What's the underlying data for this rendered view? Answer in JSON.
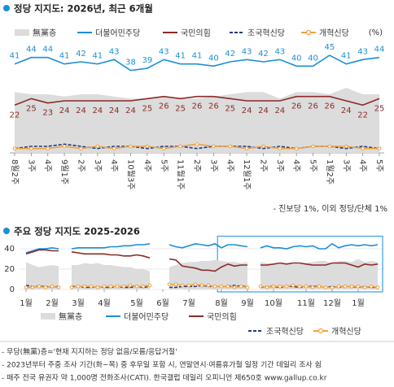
{
  "chart_data": [
    {
      "type": "line",
      "title": "정당 지지도: 2026년, 최근 6개월",
      "unit": "(%)",
      "note": "- 진보당 1%, 이외 정당/단체 1%",
      "categories": [
        "8월2주",
        "3주",
        "4주",
        "9월1주",
        "2주",
        "3주",
        "4주",
        "10월3주",
        "4주",
        "5주",
        "11월1주",
        "2주",
        "3주",
        "4주",
        "12월1주",
        "2주",
        "3주",
        "4주",
        "5주",
        "1월2주",
        "3주",
        "4주",
        "5주"
      ],
      "ylim": [
        0,
        48
      ],
      "series": [
        {
          "name": "無黨층",
          "color": "#dcdcdc",
          "style": "area",
          "values": [
            28,
            27,
            27,
            26,
            27,
            27,
            26,
            25,
            25,
            26,
            25,
            25,
            26,
            27,
            28,
            28,
            25,
            28,
            28,
            27,
            30,
            27,
            27
          ]
        },
        {
          "name": "더불어민주당",
          "color": "#1a8fd8",
          "style": "solid",
          "labels": "above",
          "values": [
            41,
            44,
            44,
            41,
            42,
            41,
            43,
            38,
            39,
            43,
            41,
            41,
            40,
            42,
            43,
            42,
            43,
            40,
            40,
            45,
            41,
            43,
            44
          ]
        },
        {
          "name": "국민의힘",
          "color": "#8b2a2a",
          "style": "solid",
          "labels": "below",
          "values": [
            22,
            25,
            23,
            24,
            24,
            24,
            24,
            24,
            25,
            26,
            25,
            26,
            26,
            25,
            24,
            24,
            24,
            26,
            26,
            26,
            24,
            22,
            25
          ]
        },
        {
          "name": "조국혁신당",
          "color": "#1f3a7a",
          "style": "dashed",
          "values": [
            2,
            3,
            3,
            4,
            3,
            2,
            3,
            3,
            2,
            3,
            3,
            2,
            3,
            3,
            3,
            2,
            3,
            2,
            3,
            3,
            2,
            3,
            2
          ]
        },
        {
          "name": "개혁신당",
          "color": "#f0a040",
          "style": "solid",
          "marker": true,
          "values": [
            2,
            2,
            2,
            3,
            2,
            3,
            2,
            3,
            3,
            2,
            3,
            4,
            3,
            3,
            2,
            3,
            2,
            2,
            3,
            3,
            3,
            2,
            2
          ]
        }
      ]
    },
    {
      "type": "line",
      "title": "주요 정당 지지도 2025-2026",
      "x": [
        1,
        2,
        3,
        4,
        5,
        6,
        7,
        8,
        9,
        10,
        11,
        12,
        13,
        14,
        15,
        16,
        17,
        18,
        19,
        20,
        21,
        22,
        23,
        24,
        25,
        26,
        27,
        28,
        29,
        30,
        31,
        32,
        33,
        34,
        35,
        36,
        37,
        38,
        39,
        40,
        41,
        42,
        43,
        44,
        45,
        46,
        47,
        48,
        49,
        50,
        51,
        52,
        53,
        54,
        55
      ],
      "xlim": [
        0,
        56
      ],
      "xticks": [
        {
          "value": 1,
          "label": "1월"
        },
        {
          "value": 5,
          "label": "2월"
        },
        {
          "value": 9,
          "label": "3월"
        },
        {
          "value": 13,
          "label": "4월"
        },
        {
          "value": 18,
          "label": "5월"
        },
        {
          "value": 22,
          "label": "6월"
        },
        {
          "value": 26,
          "label": "7월"
        },
        {
          "value": 31,
          "label": "8월"
        },
        {
          "value": 35,
          "label": "9월"
        },
        {
          "value": 39,
          "label": "10월"
        },
        {
          "value": 44,
          "label": "11월"
        },
        {
          "value": 48,
          "label": "12월"
        },
        {
          "value": 52,
          "label": "1월"
        }
      ],
      "ylim": [
        0,
        50
      ],
      "yticks": [
        0,
        20,
        40
      ],
      "series": [
        {
          "name": "無黨층",
          "color": "#dcdcdc",
          "style": "area",
          "values": [
            27,
            24,
            22,
            23,
            24,
            23,
            null,
            24,
            24,
            26,
            25,
            26,
            24,
            24,
            23,
            22,
            22,
            20,
            20,
            18,
            null,
            null,
            22,
            24,
            26,
            27,
            27,
            28,
            28,
            29,
            28,
            27,
            27,
            26,
            27,
            null,
            27,
            26,
            25,
            25,
            26,
            25,
            25,
            26,
            27,
            28,
            28,
            25,
            28,
            28,
            27,
            30,
            27,
            28,
            27
          ]
        },
        {
          "name": "더불어민주당",
          "color": "#1a8fd8",
          "style": "solid",
          "values": [
            36,
            38,
            40,
            40,
            41,
            40,
            null,
            40,
            41,
            41,
            41,
            41,
            41,
            42,
            42,
            43,
            43,
            44,
            44,
            45,
            null,
            null,
            44,
            42,
            41,
            43,
            45,
            44,
            43,
            45,
            41,
            44,
            44,
            43,
            42,
            null,
            41,
            43,
            41,
            41,
            40,
            42,
            43,
            42,
            43,
            40,
            40,
            45,
            41,
            43,
            44,
            43,
            44,
            43,
            44
          ]
        },
        {
          "name": "국민의힘",
          "color": "#8b2a2a",
          "style": "solid",
          "values": [
            35,
            37,
            39,
            39,
            38,
            38,
            null,
            37,
            36,
            35,
            35,
            35,
            35,
            34,
            34,
            33,
            33,
            34,
            33,
            31,
            null,
            null,
            30,
            29,
            23,
            22,
            21,
            19,
            19,
            18,
            22,
            25,
            23,
            24,
            24,
            null,
            24,
            24,
            25,
            26,
            25,
            26,
            26,
            25,
            24,
            24,
            24,
            26,
            26,
            26,
            24,
            22,
            25,
            24,
            25
          ]
        },
        {
          "name": "조국혁신당",
          "color": "#1f3a7a",
          "style": "dashed",
          "values": [
            4,
            3,
            3,
            3,
            2,
            3,
            null,
            3,
            3,
            2,
            2,
            3,
            2,
            2,
            3,
            2,
            2,
            3,
            2,
            3,
            null,
            null,
            2,
            2,
            3,
            3,
            3,
            4,
            3,
            3,
            3,
            3,
            4,
            3,
            3,
            null,
            2,
            3,
            3,
            2,
            3,
            3,
            2,
            3,
            3,
            3,
            2,
            3,
            2,
            3,
            3,
            2,
            3,
            2,
            2
          ]
        },
        {
          "name": "개혁신당",
          "color": "#f0a040",
          "style": "solid",
          "marker": true,
          "values": [
            2,
            2,
            3,
            2,
            3,
            2,
            null,
            2,
            3,
            3,
            3,
            2,
            3,
            3,
            3,
            3,
            4,
            3,
            3,
            4,
            null,
            null,
            5,
            5,
            4,
            4,
            5,
            4,
            4,
            3,
            3,
            3,
            2,
            3,
            2,
            null,
            3,
            2,
            3,
            3,
            3,
            4,
            3,
            3,
            2,
            3,
            2,
            2,
            3,
            3,
            3,
            3,
            2,
            3,
            2
          ]
        }
      ]
    }
  ],
  "notes": [
    "- 무당(無黨)층='현재 지지하는 정당 없음/모름/응답거절'",
    "- 2023년부터 주중 조사 기간(화~목) 중 후무일 포함 시, 연말연시·여름휴가철 일정 기간 데일리 조사 쉼",
    "- 매주 전국 유권자 약 1,000명 전화조사(CATI). 한국갤럽 데일리 오피니언 제650호 www.gallup.co.kr"
  ]
}
